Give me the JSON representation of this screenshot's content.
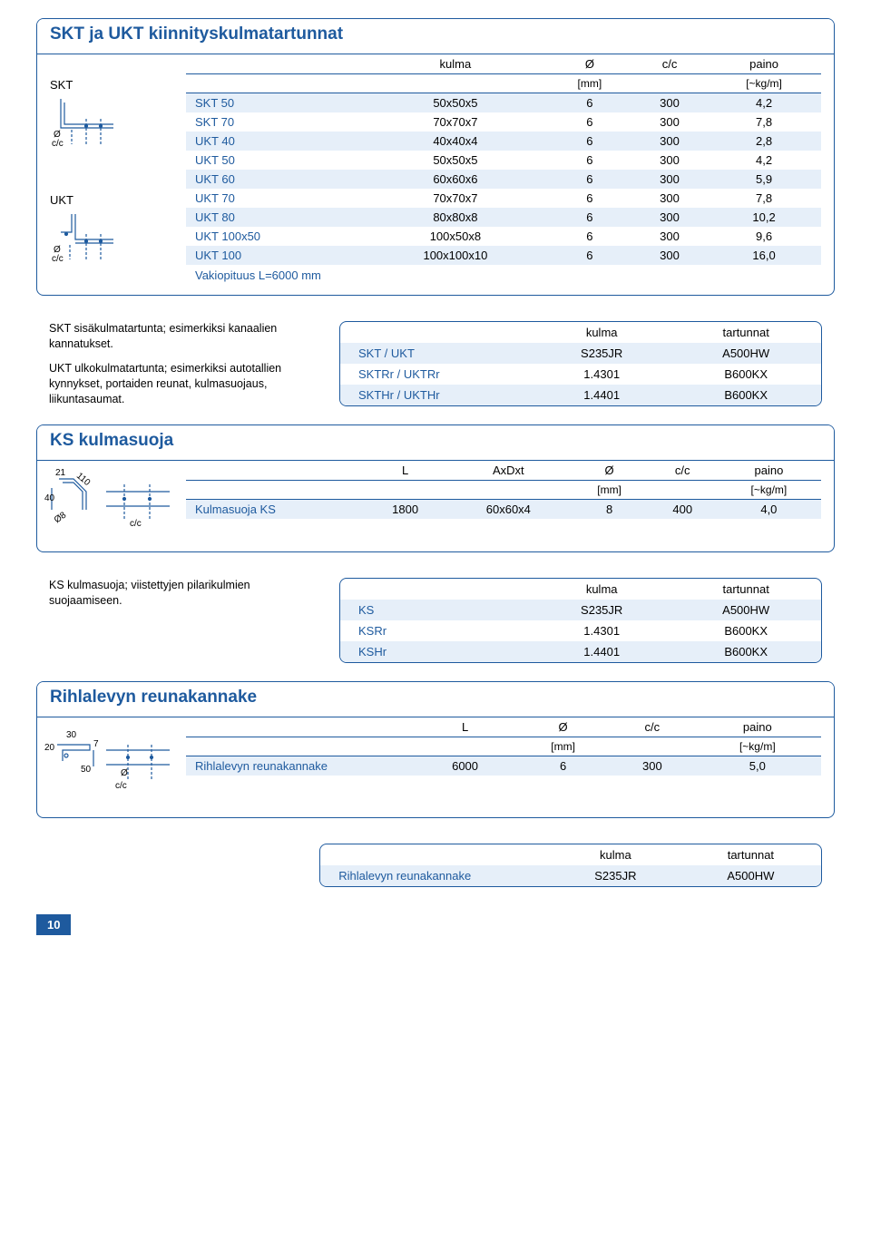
{
  "s1": {
    "title": "SKT ja UKT kiinnityskulmatartunnat",
    "label_skt": "SKT",
    "label_ukt": "UKT",
    "dia_o": "Ø",
    "dia_cc": "c/c",
    "headers": [
      "",
      "kulma",
      "Ø",
      "c/c",
      "paino"
    ],
    "units": [
      "",
      "",
      "[mm]",
      "",
      "[~kg/m]"
    ],
    "rows": [
      {
        "n": "SKT 50",
        "k": "50x50x5",
        "o": "6",
        "c": "300",
        "p": "4,2",
        "band": true
      },
      {
        "n": "SKT 70",
        "k": "70x70x7",
        "o": "6",
        "c": "300",
        "p": "7,8",
        "band": false
      },
      {
        "n": "UKT 40",
        "k": "40x40x4",
        "o": "6",
        "c": "300",
        "p": "2,8",
        "band": true
      },
      {
        "n": "UKT 50",
        "k": "50x50x5",
        "o": "6",
        "c": "300",
        "p": "4,2",
        "band": false
      },
      {
        "n": "UKT 60",
        "k": "60x60x6",
        "o": "6",
        "c": "300",
        "p": "5,9",
        "band": true
      },
      {
        "n": "UKT 70",
        "k": "70x70x7",
        "o": "6",
        "c": "300",
        "p": "7,8",
        "band": false
      },
      {
        "n": "UKT 80",
        "k": "80x80x8",
        "o": "6",
        "c": "300",
        "p": "10,2",
        "band": true
      },
      {
        "n": "UKT 100x50",
        "k": "100x50x8",
        "o": "6",
        "c": "300",
        "p": "9,6",
        "band": false
      },
      {
        "n": "UKT 100",
        "k": "100x100x10",
        "o": "6",
        "c": "300",
        "p": "16,0",
        "band": true
      }
    ],
    "footer": "Vakiopituus L=6000 mm"
  },
  "s1_desc": {
    "p1": "SKT sisäkulmatartunta; esimerkiksi kanaalien kannatukset.",
    "p2": "UKT ulkokulmatartunta; esimerkiksi autotallien kynnykset, portaiden reunat, kulmasuojaus, liikuntasaumat."
  },
  "s1_mat": {
    "h1": "kulma",
    "h2": "tartunnat",
    "rows": [
      {
        "n": "SKT / UKT",
        "a": "S235JR",
        "b": "A500HW",
        "band": true
      },
      {
        "n": "SKTRr / UKTRr",
        "a": "1.4301",
        "b": "B600KX",
        "band": false
      },
      {
        "n": "SKTHr / UKTHr",
        "a": "1.4401",
        "b": "B600KX",
        "band": true
      }
    ]
  },
  "s2": {
    "title": "KS kulmasuoja",
    "dim21": "21",
    "dim110": "110",
    "dim40": "40",
    "dim08": "Ø8",
    "dim_cc": "c/c",
    "headers": [
      "",
      "L",
      "AxDxt",
      "Ø",
      "c/c",
      "paino"
    ],
    "units": [
      "",
      "",
      "",
      "[mm]",
      "",
      "[~kg/m]"
    ],
    "row": {
      "n": "Kulmasuoja KS",
      "L": "1800",
      "a": "60x60x4",
      "o": "8",
      "c": "400",
      "p": "4,0"
    }
  },
  "s2_desc": "KS kulmasuoja; viistettyjen pilarikulmien suojaamiseen.",
  "s2_mat": {
    "h1": "kulma",
    "h2": "tartunnat",
    "rows": [
      {
        "n": "KS",
        "a": "S235JR",
        "b": "A500HW",
        "band": true
      },
      {
        "n": "KSRr",
        "a": "1.4301",
        "b": "B600KX",
        "band": false
      },
      {
        "n": "KSHr",
        "a": "1.4401",
        "b": "B600KX",
        "band": true
      }
    ]
  },
  "s3": {
    "title": "Rihlalevyn reunakannake",
    "dim30": "30",
    "dim20": "20",
    "dim7": "7",
    "dim50": "50",
    "dim_o": "Ø",
    "dim_cc": "c/c",
    "headers": [
      "",
      "L",
      "Ø",
      "c/c",
      "paino"
    ],
    "units": [
      "",
      "",
      "[mm]",
      "",
      "[~kg/m]"
    ],
    "row": {
      "n": "Rihlalevyn reunakannake",
      "L": "6000",
      "o": "6",
      "c": "300",
      "p": "5,0"
    }
  },
  "s3_mat": {
    "h1": "kulma",
    "h2": "tartunnat",
    "row": {
      "n": "Rihlalevyn reunakannake",
      "a": "S235JR",
      "b": "A500HW"
    }
  },
  "page_num": "10"
}
